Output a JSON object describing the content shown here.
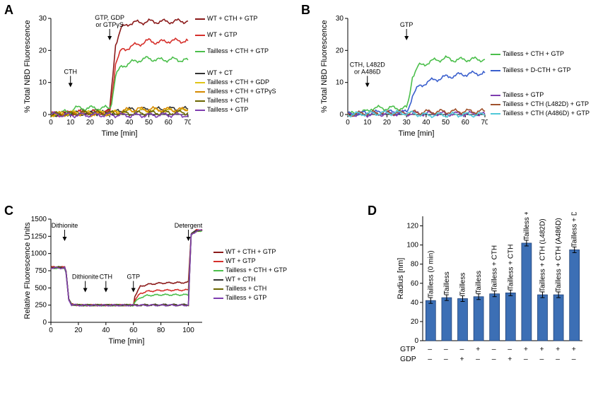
{
  "panels": {
    "A": "A",
    "B": "B",
    "C": "C",
    "D": "D"
  },
  "colors": {
    "wt_cth_gtp": "#8b1a1a",
    "wt_gtp": "#d6302b",
    "tailless_cth_gtp": "#4bbf4b",
    "wt_ct": "#333333",
    "tailless_cth_gdp": "#e0c516",
    "tailless_cth_gtpgs": "#d68a00",
    "tailless_cth": "#6b6600",
    "tailless_gtp": "#7e3db0",
    "tailless_dcth_gtp": "#3a5fcd",
    "tailless_cth_l482d_gtp": "#a0522d",
    "tailless_cth_a486d_gtp": "#4fc8d8",
    "bar_fill": "#3c6fb5",
    "axis": "#000000",
    "bg": "#ffffff"
  },
  "A": {
    "title": "",
    "xlim": [
      0,
      70
    ],
    "ylim": [
      0,
      30
    ],
    "xtick_step": 10,
    "ytick_step": 10,
    "xlabel": "Time [min]",
    "ylabel": "% Total NBD Fluorescence",
    "ann1": "CTH",
    "ann1_x": 10,
    "ann2": "GTP, GDP\nor GTPγS",
    "ann2_x": 30,
    "series": [
      {
        "key": "wt_cth_gtp",
        "label": "WT + CTH + GTP",
        "pts": [
          [
            0,
            0
          ],
          [
            10,
            0.5
          ],
          [
            12,
            1
          ],
          [
            20,
            1
          ],
          [
            30,
            1
          ],
          [
            31,
            8
          ],
          [
            33,
            22
          ],
          [
            36,
            27
          ],
          [
            40,
            28.5
          ],
          [
            50,
            29
          ],
          [
            60,
            29
          ],
          [
            70,
            29.2
          ]
        ]
      },
      {
        "key": "wt_gtp",
        "label": "WT + GTP",
        "pts": [
          [
            0,
            0
          ],
          [
            10,
            0.5
          ],
          [
            20,
            0.7
          ],
          [
            30,
            0.5
          ],
          [
            31,
            5
          ],
          [
            33,
            16
          ],
          [
            36,
            20
          ],
          [
            40,
            21
          ],
          [
            45,
            22
          ],
          [
            50,
            23
          ],
          [
            55,
            22.5
          ],
          [
            60,
            23
          ],
          [
            70,
            23
          ]
        ]
      },
      {
        "key": "tailless_cth_gtp",
        "label": "Tailless + CTH + GTP",
        "pts": [
          [
            0,
            0
          ],
          [
            10,
            1
          ],
          [
            12,
            2
          ],
          [
            20,
            2
          ],
          [
            30,
            2
          ],
          [
            31,
            4
          ],
          [
            33,
            12
          ],
          [
            36,
            15
          ],
          [
            40,
            16
          ],
          [
            45,
            17
          ],
          [
            50,
            17.5
          ],
          [
            55,
            17
          ],
          [
            60,
            17.2
          ],
          [
            70,
            17
          ]
        ]
      },
      {
        "key": "wt_ct",
        "label": "WT + CT",
        "pts": [
          [
            0,
            0
          ],
          [
            10,
            0.3
          ],
          [
            20,
            0.5
          ],
          [
            30,
            0.4
          ],
          [
            40,
            1.5
          ],
          [
            50,
            1.5
          ],
          [
            60,
            1.7
          ],
          [
            70,
            1.7
          ]
        ]
      },
      {
        "key": "tailless_cth_gdp",
        "label": "Tailless + CTH + GDP",
        "pts": [
          [
            0,
            0
          ],
          [
            10,
            0.5
          ],
          [
            20,
            0.5
          ],
          [
            30,
            0.5
          ],
          [
            40,
            1
          ],
          [
            50,
            1.2
          ],
          [
            60,
            1.2
          ],
          [
            70,
            1.2
          ]
        ]
      },
      {
        "key": "tailless_cth_gtpgs",
        "label": "Tailless + CTH + GTPγS",
        "pts": [
          [
            0,
            0
          ],
          [
            10,
            0.3
          ],
          [
            20,
            0.2
          ],
          [
            30,
            0.3
          ],
          [
            40,
            1.5
          ],
          [
            50,
            1.7
          ],
          [
            60,
            1.5
          ],
          [
            70,
            1.5
          ]
        ]
      },
      {
        "key": "tailless_cth",
        "label": "Tailless + CTH",
        "pts": [
          [
            0,
            0
          ],
          [
            10,
            0.2
          ],
          [
            20,
            0.6
          ],
          [
            30,
            0.5
          ],
          [
            40,
            0.3
          ],
          [
            50,
            0.5
          ],
          [
            60,
            0.6
          ],
          [
            70,
            0.6
          ]
        ]
      },
      {
        "key": "tailless_gtp",
        "label": "Tailless + GTP",
        "pts": [
          [
            0,
            0
          ],
          [
            10,
            -0.2
          ],
          [
            20,
            -0.1
          ],
          [
            30,
            -0.1
          ],
          [
            40,
            -0.3
          ],
          [
            50,
            -0.2
          ],
          [
            60,
            -0.1
          ],
          [
            70,
            -0.2
          ]
        ]
      }
    ]
  },
  "B": {
    "xlim": [
      0,
      70
    ],
    "ylim": [
      0,
      30
    ],
    "xtick_step": 10,
    "ytick_step": 10,
    "xlabel": "Time [min]",
    "ylabel": "% Total NBD Fluorescence",
    "ann1": "CTH, L482D\nor A486D",
    "ann1_x": 10,
    "ann2": "GTP",
    "ann2_x": 30,
    "series": [
      {
        "key": "tailless_cth_gtp",
        "label": "Tailless + CTH + GTP",
        "pts": [
          [
            0,
            0
          ],
          [
            10,
            1
          ],
          [
            12,
            2
          ],
          [
            20,
            2
          ],
          [
            30,
            2
          ],
          [
            31,
            4
          ],
          [
            33,
            12
          ],
          [
            36,
            15
          ],
          [
            40,
            16
          ],
          [
            45,
            17
          ],
          [
            50,
            17.5
          ],
          [
            55,
            17
          ],
          [
            60,
            17.2
          ],
          [
            70,
            17.2
          ]
        ]
      },
      {
        "key": "tailless_dcth_gtp",
        "label": "Tailless + D-CTH + GTP",
        "pts": [
          [
            0,
            0
          ],
          [
            10,
            0.5
          ],
          [
            20,
            0.7
          ],
          [
            30,
            0.7
          ],
          [
            31,
            2
          ],
          [
            33,
            6
          ],
          [
            36,
            8.5
          ],
          [
            40,
            10
          ],
          [
            45,
            11
          ],
          [
            50,
            11.7
          ],
          [
            55,
            12.2
          ],
          [
            60,
            12.6
          ],
          [
            70,
            13
          ]
        ]
      },
      {
        "key": "tailless_gtp",
        "label": "Tailless + GTP",
        "pts": [
          [
            0,
            0
          ],
          [
            10,
            0
          ],
          [
            20,
            0.2
          ],
          [
            30,
            0.3
          ],
          [
            40,
            0.3
          ],
          [
            50,
            0.2
          ],
          [
            60,
            0.2
          ],
          [
            70,
            0.2
          ]
        ]
      },
      {
        "key": "tailless_cth_l482d_gtp",
        "label": "Tailless + CTH (L482D) + GTP",
        "pts": [
          [
            0,
            0
          ],
          [
            10,
            0.5
          ],
          [
            20,
            0.6
          ],
          [
            30,
            0.5
          ],
          [
            40,
            0.8
          ],
          [
            50,
            0.9
          ],
          [
            60,
            1
          ],
          [
            70,
            1
          ]
        ]
      },
      {
        "key": "tailless_cth_a486d_gtp",
        "label": "Tailless + CTH (A486D) + GTP",
        "pts": [
          [
            0,
            0
          ],
          [
            10,
            0.3
          ],
          [
            20,
            0.5
          ],
          [
            30,
            0.5
          ],
          [
            40,
            -0.2
          ],
          [
            50,
            -0.1
          ],
          [
            60,
            0
          ],
          [
            70,
            -0.1
          ]
        ]
      }
    ]
  },
  "C": {
    "xlim": [
      0,
      110
    ],
    "ylim": [
      0,
      1500
    ],
    "xtick_step": 20,
    "ytick_step": 250,
    "xlabel": "Time [min]",
    "ylabel": "Relative Fluorescence Units",
    "ann": [
      {
        "text": "Dithionite",
        "x": 10,
        "above": true
      },
      {
        "text": "Dithionite",
        "x": 25,
        "above": false
      },
      {
        "text": "CTH",
        "x": 40,
        "above": false
      },
      {
        "text": "GTP",
        "x": 60,
        "above": false
      },
      {
        "text": "Detergent",
        "x": 100,
        "above": true
      }
    ],
    "series": [
      {
        "key": "wt_cth_gtp",
        "label": "WT + CTH + GTP",
        "pts": [
          [
            0,
            800
          ],
          [
            8,
            800
          ],
          [
            10,
            800
          ],
          [
            11,
            750
          ],
          [
            13,
            340
          ],
          [
            15,
            260
          ],
          [
            20,
            250
          ],
          [
            40,
            250
          ],
          [
            60,
            250
          ],
          [
            61,
            380
          ],
          [
            65,
            520
          ],
          [
            70,
            550
          ],
          [
            80,
            570
          ],
          [
            90,
            575
          ],
          [
            100,
            580
          ],
          [
            102,
            1280
          ],
          [
            106,
            1330
          ],
          [
            110,
            1340
          ]
        ]
      },
      {
        "key": "wt_gtp",
        "label": "WT + GTP",
        "pts": [
          [
            0,
            800
          ],
          [
            10,
            800
          ],
          [
            11,
            740
          ],
          [
            13,
            330
          ],
          [
            15,
            260
          ],
          [
            20,
            250
          ],
          [
            60,
            250
          ],
          [
            61,
            320
          ],
          [
            65,
            420
          ],
          [
            70,
            450
          ],
          [
            80,
            465
          ],
          [
            100,
            470
          ],
          [
            102,
            1280
          ],
          [
            106,
            1340
          ],
          [
            110,
            1350
          ]
        ]
      },
      {
        "key": "tailless_cth_gtp",
        "label": "Tailless + CTH + GTP",
        "pts": [
          [
            0,
            790
          ],
          [
            10,
            790
          ],
          [
            11,
            720
          ],
          [
            13,
            330
          ],
          [
            15,
            260
          ],
          [
            20,
            250
          ],
          [
            60,
            250
          ],
          [
            61,
            290
          ],
          [
            65,
            360
          ],
          [
            70,
            390
          ],
          [
            80,
            400
          ],
          [
            100,
            400
          ],
          [
            102,
            1270
          ],
          [
            106,
            1330
          ],
          [
            110,
            1330
          ]
        ]
      },
      {
        "key": "wt_ct",
        "label": "WT + CTH",
        "pts": [
          [
            0,
            800
          ],
          [
            10,
            800
          ],
          [
            11,
            740
          ],
          [
            13,
            330
          ],
          [
            15,
            260
          ],
          [
            20,
            250
          ],
          [
            60,
            250
          ],
          [
            80,
            255
          ],
          [
            100,
            255
          ],
          [
            102,
            1280
          ],
          [
            106,
            1340
          ],
          [
            110,
            1340
          ]
        ]
      },
      {
        "key": "tailless_cth",
        "label": "Tailless + CTH",
        "pts": [
          [
            0,
            795
          ],
          [
            10,
            795
          ],
          [
            11,
            730
          ],
          [
            13,
            330
          ],
          [
            15,
            260
          ],
          [
            20,
            250
          ],
          [
            100,
            250
          ],
          [
            102,
            1270
          ],
          [
            106,
            1330
          ],
          [
            110,
            1330
          ]
        ]
      },
      {
        "key": "tailless_gtp",
        "label": "Tailless + GTP",
        "pts": [
          [
            0,
            790
          ],
          [
            10,
            790
          ],
          [
            11,
            720
          ],
          [
            13,
            330
          ],
          [
            15,
            255
          ],
          [
            20,
            248
          ],
          [
            100,
            248
          ],
          [
            102,
            1270
          ],
          [
            106,
            1330
          ],
          [
            110,
            1335
          ]
        ]
      }
    ]
  },
  "D": {
    "ylim": [
      0,
      130
    ],
    "ytick_step": 20,
    "ylabel": "Radius [nm]",
    "conditions": [
      "GTP",
      "GDP"
    ],
    "bars": [
      {
        "label": "Tailless (0 min)",
        "value": 42,
        "err": 3,
        "gtp": "–",
        "gdp": "–"
      },
      {
        "label": "Tailless",
        "value": 45,
        "err": 3,
        "gtp": "–",
        "gdp": "–"
      },
      {
        "label": "Tailless",
        "value": 44,
        "err": 3,
        "gtp": "–",
        "gdp": "+"
      },
      {
        "label": "Tailless",
        "value": 46,
        "err": 3,
        "gtp": "+",
        "gdp": "–"
      },
      {
        "label": "Tailless + CTH",
        "value": 49,
        "err": 3,
        "gtp": "–",
        "gdp": "–"
      },
      {
        "label": "Tailless + CTH",
        "value": 50,
        "err": 3,
        "gtp": "–",
        "gdp": "+"
      },
      {
        "label": "Tailless + CTH",
        "value": 102,
        "err": 3,
        "gtp": "+",
        "gdp": "–"
      },
      {
        "label": "Tailless + CTH (L482D)",
        "value": 48,
        "err": 3,
        "gtp": "+",
        "gdp": "–"
      },
      {
        "label": "Tailless + CTH (A486D)",
        "value": 48,
        "err": 3,
        "gtp": "+",
        "gdp": "–"
      },
      {
        "label": "Tailless + D-CTH",
        "value": 95,
        "err": 3,
        "gtp": "+",
        "gdp": "–"
      }
    ]
  }
}
